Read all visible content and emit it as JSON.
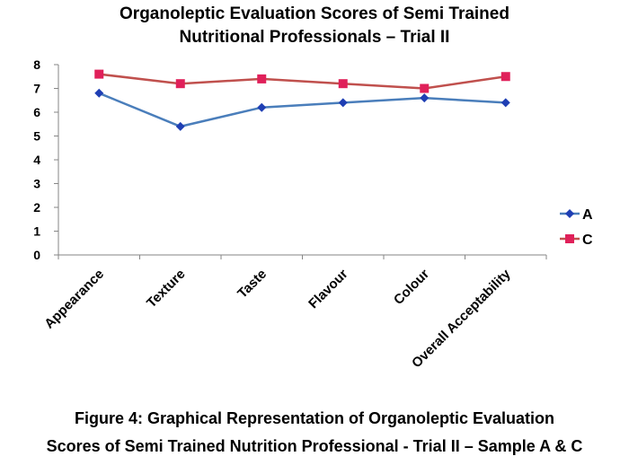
{
  "chart_data": {
    "type": "line",
    "title": [
      "Organoleptic Evaluation Scores of Semi Trained",
      "Nutritional Professionals – Trial II"
    ],
    "categories": [
      "Appearance",
      "Texture",
      "Taste",
      "Flavour",
      "Colour",
      "Overall Acceptability"
    ],
    "series": [
      {
        "name": "A",
        "values": [
          6.8,
          5.4,
          6.2,
          6.4,
          6.6,
          6.4
        ],
        "color": "#4a7ebb",
        "marker": "diamond",
        "marker_color": "#1f3fb4"
      },
      {
        "name": "C",
        "values": [
          7.6,
          7.2,
          7.4,
          7.2,
          7.0,
          7.5
        ],
        "color": "#c0504d",
        "marker": "square",
        "marker_color": "#e0205a"
      }
    ],
    "ylim": [
      0,
      8
    ],
    "yticks": [
      "0",
      "1",
      "2",
      "3",
      "4",
      "5",
      "6",
      "7",
      "8"
    ],
    "grid": false,
    "legend": "right"
  },
  "caption": {
    "line1": "Figure 4: Graphical Representation of Organoleptic Evaluation",
    "line2": "Scores of Semi Trained Nutrition Professional - Trial II – Sample A & C"
  }
}
